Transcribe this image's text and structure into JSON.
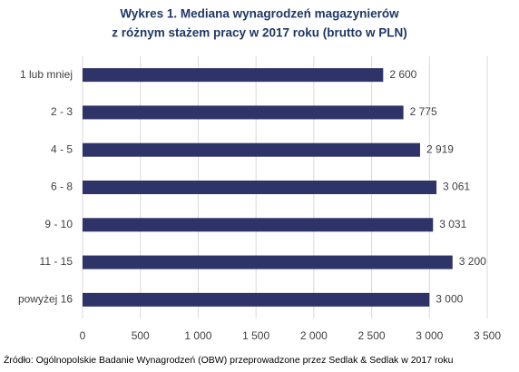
{
  "chart_data": {
    "type": "barh",
    "title": [
      "Wykres 1. Mediana wynagrodzeń magazynierów",
      "z różnym stażem pracy w 2017 roku (brutto w PLN)"
    ],
    "categories": [
      "1 lub mniej",
      "2 - 3",
      "4 - 5",
      "6 - 8",
      "9 - 10",
      "11 - 15",
      "powyżej 16"
    ],
    "values": [
      2600,
      2775,
      2919,
      3061,
      3031,
      3200,
      3000
    ],
    "value_labels": [
      "2 600",
      "2 775",
      "2 919",
      "3 061",
      "3 031",
      "3 200",
      "3 000"
    ],
    "color": "#2e3467",
    "xlim": [
      0,
      3500
    ],
    "xticks": [
      0,
      500,
      {
        "value": 1000,
        "label": "1 000"
      },
      {
        "value": 1500,
        "label": "1 500"
      },
      {
        "value": 2000,
        "label": "2 000"
      },
      {
        "value": 2500,
        "label": "2 500"
      },
      {
        "value": 3000,
        "label": "3 000"
      },
      {
        "value": 3500,
        "label": "3 500"
      }
    ],
    "grid": true,
    "source": "Źródło: Ogólnopolskie Badanie Wynagrodzeń (OBW) przeprowadzone przez Sedlak & Sedlak w 2017 roku"
  }
}
